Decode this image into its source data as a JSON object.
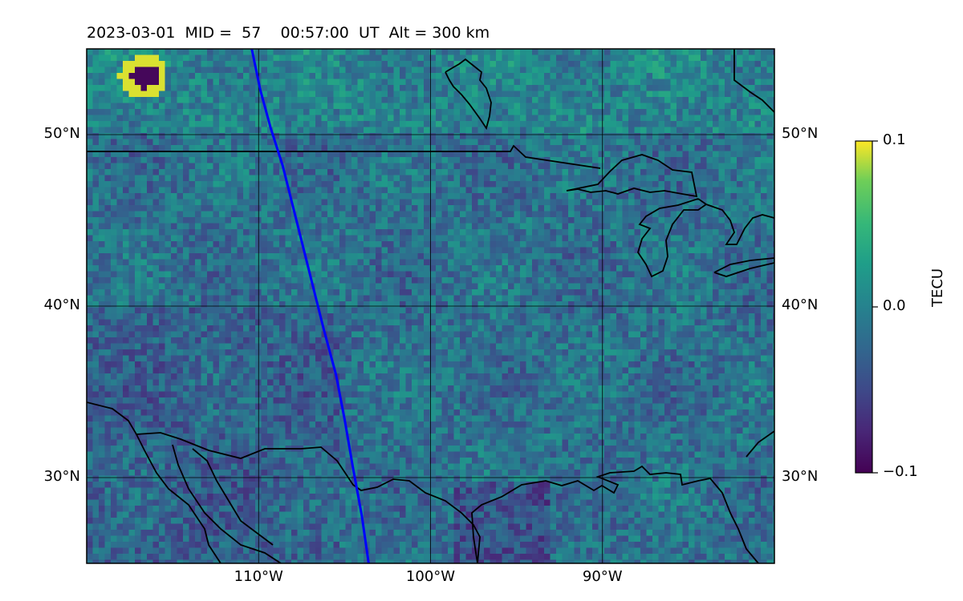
{
  "title": {
    "date": "2023-03-01",
    "mid": "MID =  57",
    "time": "00:57:00  UT",
    "alt": "Alt = 300 km"
  },
  "map": {
    "lon_range": [
      -120,
      -80
    ],
    "lat_range": [
      25,
      55
    ],
    "lat_ticks": [
      {
        "value": 50,
        "label": "50°N"
      },
      {
        "value": 40,
        "label": "40°N"
      },
      {
        "value": 30,
        "label": "30°N"
      }
    ],
    "lon_ticks": [
      {
        "value": -110,
        "label": "110°W"
      },
      {
        "value": -100,
        "label": "100°W"
      },
      {
        "value": -90,
        "label": "90°W"
      }
    ],
    "gridlines": true,
    "track_color": "#0000ff",
    "track": [
      [
        -110.4,
        55
      ],
      [
        -109.9,
        52.6
      ],
      [
        -109.3,
        50.4
      ],
      [
        -108.6,
        48.2
      ],
      [
        -108.0,
        45.8
      ],
      [
        -107.3,
        43.0
      ],
      [
        -106.8,
        41.0
      ],
      [
        -106.2,
        38.6
      ],
      [
        -105.5,
        36.0
      ],
      [
        -105.0,
        33.4
      ],
      [
        -104.5,
        30.5
      ],
      [
        -104.0,
        27.8
      ],
      [
        -103.6,
        25
      ]
    ]
  },
  "colorbar": {
    "label": "TECU",
    "max_label": "0.1",
    "mid_label": "0.0",
    "min_label": "−0.1",
    "min": -0.1,
    "max": 0.1,
    "colormap": "viridis"
  }
}
